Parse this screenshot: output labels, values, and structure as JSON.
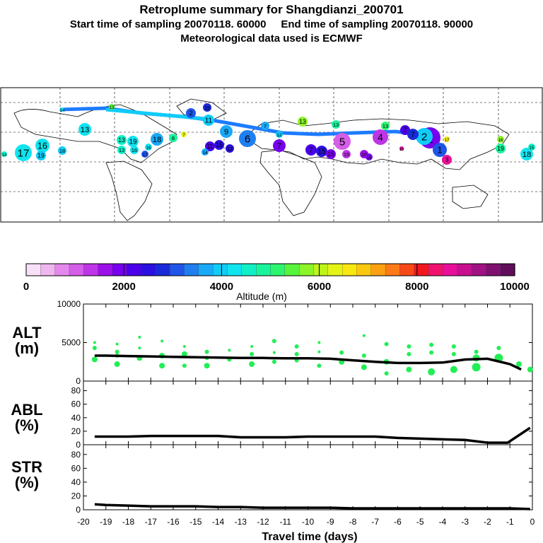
{
  "header": {
    "title": "Retroplume summary for Shangdianzi_200701",
    "start_label": "Start time of sampling 20070118. 60000",
    "end_label": "End time of sampling 20070118. 90000",
    "met_label": "Meteorological data used is ECMWF"
  },
  "colors": {
    "point": "#22ee55",
    "line": "#000000",
    "track": "#1e7bff"
  },
  "map": {
    "description_type": "world map with retroplume cluster positions",
    "cluster_labels": [
      "1",
      "2",
      "3",
      "4",
      "5",
      "6",
      "7",
      "8",
      "9",
      "10",
      "11",
      "12",
      "13",
      "14",
      "15",
      "16",
      "17",
      "18",
      "19",
      "20"
    ]
  },
  "colorbar": {
    "ticks": [
      "0",
      "2000",
      "4000",
      "6000",
      "8000",
      "10000"
    ],
    "label": "Altitude (m)",
    "colors": [
      "#f7e0f7",
      "#efb6ef",
      "#e488ee",
      "#d55de8",
      "#bd35e6",
      "#9b10e8",
      "#7700ee",
      "#4a00e8",
      "#2a10e0",
      "#1a2ad8",
      "#1f55e8",
      "#1f7ff0",
      "#18a9f7",
      "#10ccf7",
      "#10e4ef",
      "#10f0c8",
      "#18f49c",
      "#2cf46e",
      "#58f43c",
      "#8cf428",
      "#bdf41a",
      "#e4f415",
      "#f8e80f",
      "#fcc80f",
      "#fca011",
      "#fc7b16",
      "#f84a19",
      "#f0181e",
      "#f0126e",
      "#e8109b",
      "#c8108f",
      "#a01283",
      "#801070",
      "#600e5a"
    ]
  },
  "chart_data": [
    {
      "type": "line",
      "panel": "ALT",
      "ylabel": "ALT\n(m)",
      "ylim": [
        0,
        10000
      ],
      "yticks": [
        "0",
        "5000",
        "10000"
      ],
      "x": [
        -19.5,
        -19,
        -18,
        -17,
        -16,
        -15,
        -14,
        -13,
        -12,
        -11,
        -10,
        -9,
        -8,
        -7,
        -6,
        -5,
        -4,
        -3,
        -2,
        -1,
        -0.5
      ],
      "values": [
        3300,
        3300,
        3250,
        3200,
        3150,
        3100,
        3050,
        3000,
        3000,
        2950,
        2950,
        2900,
        2700,
        2500,
        2350,
        2350,
        2400,
        2800,
        2900,
        2200,
        1500
      ],
      "scatter": [
        {
          "x": -19.5,
          "y": 5000,
          "s": 2
        },
        {
          "x": -19.5,
          "y": 4300,
          "s": 3
        },
        {
          "x": -19.5,
          "y": 2800,
          "s": 4
        },
        {
          "x": -18.5,
          "y": 4800,
          "s": 2
        },
        {
          "x": -18.5,
          "y": 3800,
          "s": 3
        },
        {
          "x": -18.5,
          "y": 3300,
          "s": 3
        },
        {
          "x": -18.5,
          "y": 2200,
          "s": 4
        },
        {
          "x": -17.5,
          "y": 5700,
          "s": 2
        },
        {
          "x": -17.5,
          "y": 4300,
          "s": 2
        },
        {
          "x": -17.5,
          "y": 3000,
          "s": 4
        },
        {
          "x": -16.5,
          "y": 5200,
          "s": 2
        },
        {
          "x": -16.5,
          "y": 3300,
          "s": 4
        },
        {
          "x": -16.5,
          "y": 2000,
          "s": 4
        },
        {
          "x": -15.5,
          "y": 4500,
          "s": 2
        },
        {
          "x": -15.5,
          "y": 3500,
          "s": 4
        },
        {
          "x": -15.5,
          "y": 2000,
          "s": 3
        },
        {
          "x": -14.5,
          "y": 3800,
          "s": 3
        },
        {
          "x": -14.5,
          "y": 3000,
          "s": 3
        },
        {
          "x": -14.5,
          "y": 2000,
          "s": 4
        },
        {
          "x": -13.5,
          "y": 4000,
          "s": 2
        },
        {
          "x": -13.5,
          "y": 2800,
          "s": 3
        },
        {
          "x": -12.5,
          "y": 4500,
          "s": 2
        },
        {
          "x": -12.5,
          "y": 3500,
          "s": 3
        },
        {
          "x": -12.5,
          "y": 2200,
          "s": 4
        },
        {
          "x": -11.5,
          "y": 5200,
          "s": 3
        },
        {
          "x": -11.5,
          "y": 3700,
          "s": 2
        },
        {
          "x": -11.5,
          "y": 2500,
          "s": 3
        },
        {
          "x": -10.5,
          "y": 4500,
          "s": 3
        },
        {
          "x": -10.5,
          "y": 3500,
          "s": 3
        },
        {
          "x": -10.5,
          "y": 2700,
          "s": 3
        },
        {
          "x": -9.5,
          "y": 5000,
          "s": 2
        },
        {
          "x": -9.5,
          "y": 3800,
          "s": 2
        },
        {
          "x": -9.5,
          "y": 2000,
          "s": 3
        },
        {
          "x": -8.5,
          "y": 3700,
          "s": 3
        },
        {
          "x": -8.5,
          "y": 2500,
          "s": 4
        },
        {
          "x": -7.5,
          "y": 5900,
          "s": 2
        },
        {
          "x": -7.5,
          "y": 3300,
          "s": 3
        },
        {
          "x": -7.5,
          "y": 1800,
          "s": 4
        },
        {
          "x": -6.5,
          "y": 4800,
          "s": 3
        },
        {
          "x": -6.5,
          "y": 2500,
          "s": 4
        },
        {
          "x": -6.5,
          "y": 1000,
          "s": 3
        },
        {
          "x": -5.5,
          "y": 4500,
          "s": 3
        },
        {
          "x": -5.5,
          "y": 3500,
          "s": 3
        },
        {
          "x": -5.5,
          "y": 1500,
          "s": 4
        },
        {
          "x": -4.5,
          "y": 4700,
          "s": 3
        },
        {
          "x": -4.5,
          "y": 3700,
          "s": 3
        },
        {
          "x": -4.5,
          "y": 1200,
          "s": 5
        },
        {
          "x": -3.5,
          "y": 4500,
          "s": 3
        },
        {
          "x": -3.5,
          "y": 3500,
          "s": 3
        },
        {
          "x": -3.5,
          "y": 1500,
          "s": 5
        },
        {
          "x": -2.5,
          "y": 3800,
          "s": 3
        },
        {
          "x": -2.5,
          "y": 3000,
          "s": 5
        },
        {
          "x": -2.5,
          "y": 1800,
          "s": 6
        },
        {
          "x": -1.5,
          "y": 4300,
          "s": 3
        },
        {
          "x": -1.5,
          "y": 3000,
          "s": 6
        },
        {
          "x": -0.6,
          "y": 2200,
          "s": 4
        },
        {
          "x": -0.1,
          "y": 1500,
          "s": 4
        }
      ]
    },
    {
      "type": "line",
      "panel": "ABL",
      "ylabel": "ABL\n(%)",
      "ylim": [
        0,
        90
      ],
      "yticks": [
        "0",
        "20",
        "40",
        "60",
        "80"
      ],
      "x": [
        -19.5,
        -19,
        -18,
        -17,
        -16,
        -15,
        -14,
        -13,
        -12,
        -11,
        -10,
        -9,
        -8,
        -7,
        -6,
        -5,
        -4,
        -3,
        -2,
        -1.1,
        -0.1
      ],
      "values": [
        12,
        12,
        12,
        13,
        13,
        13,
        13,
        11,
        11,
        11,
        12,
        12,
        12,
        12,
        10,
        9,
        8,
        7,
        3,
        3,
        25
      ]
    },
    {
      "type": "line",
      "panel": "STR",
      "ylabel": "STR\n(%)",
      "ylim": [
        0,
        90
      ],
      "yticks": [
        "0",
        "20",
        "40",
        "60",
        "80"
      ],
      "x": [
        -19.5,
        -19,
        -18,
        -17,
        -16,
        -15,
        -14,
        -13,
        -12,
        -11,
        -10,
        -9,
        -8,
        -7,
        -6,
        -5,
        -4,
        -3,
        -2,
        -1,
        -0.1
      ],
      "values": [
        8,
        7,
        6,
        5,
        5,
        5,
        4,
        4,
        3,
        3,
        3,
        3,
        2,
        2,
        2,
        2,
        2,
        2,
        2,
        2,
        1
      ]
    }
  ],
  "xaxis": {
    "xlim": [
      -20,
      0
    ],
    "ticks": [
      "-20",
      "-19",
      "-18",
      "-17",
      "-16",
      "-15",
      "-14",
      "-13",
      "-12",
      "-11",
      "-10",
      "-9",
      "-8",
      "-7",
      "-6",
      "-5",
      "-4",
      "-3",
      "-2",
      "-1",
      "0"
    ],
    "xlabel": "Travel time (days)"
  }
}
